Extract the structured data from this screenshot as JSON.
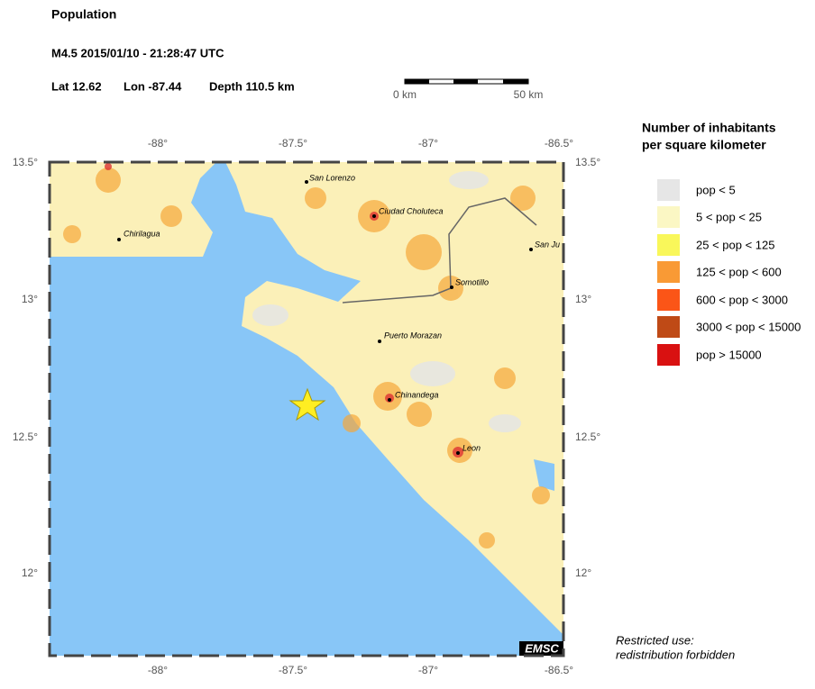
{
  "header": {
    "title": "Population",
    "event": "M4.5  2015/01/10 - 21:28:47 UTC",
    "lat": "Lat 12.62",
    "lon": "Lon -87.44",
    "depth": "Depth 110.5 km"
  },
  "scale_bar": {
    "start": "0 km",
    "end": "50 km"
  },
  "map": {
    "xticks": [
      "-88°",
      "-87.5°",
      "-87°",
      "-86.5°"
    ],
    "yticks": [
      "13.5°",
      "13°",
      "12.5°",
      "12°"
    ],
    "cities": [
      "San Lorenzo",
      "Ciudad Choluteca",
      "Chirilagua",
      "Somotillo",
      "Puerto Morazan",
      "Chinandega",
      "Leon",
      "San Ju"
    ],
    "logo": "EMSC"
  },
  "legend": {
    "title": [
      "Number of inhabitants",
      "per square kilometer"
    ],
    "items": [
      "pop < 5",
      "5 < pop < 25",
      "25 < pop < 125",
      "125 < pop < 600",
      "600 < pop < 3000",
      "3000 < pop < 15000",
      "pop > 15000"
    ]
  },
  "footer": [
    "Restricted use:",
    "redistribution forbidden"
  ]
}
